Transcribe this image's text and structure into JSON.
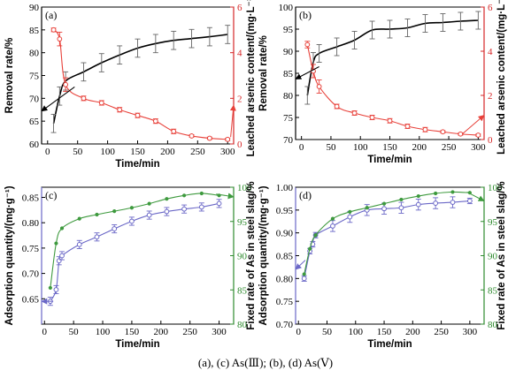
{
  "caption": "(a), (c) As(Ⅲ); (b), (d) As(Ⅴ)",
  "colors": {
    "black": "#000000",
    "red": "#e8413a",
    "blue": "#6b68c7",
    "green": "#3e9a3e",
    "red_axis": "#d62728",
    "green_axis": "#2e8b2e"
  },
  "chart_data": [
    {
      "id": "a",
      "type": "line",
      "panel_label": "(a)",
      "xlabel": "Time/min",
      "ylabel": "Removal rate/%",
      "y2label": "Leached arsenic content/(mg·L⁻¹)",
      "xlim": [
        -10,
        310
      ],
      "ylim": [
        60,
        90
      ],
      "y2lim": [
        0,
        6
      ],
      "xticks": [
        0,
        50,
        100,
        150,
        200,
        250,
        300
      ],
      "yticks": [
        60,
        65,
        70,
        75,
        80,
        85,
        90
      ],
      "y2ticks": [
        0,
        2,
        4,
        6
      ],
      "series": [
        {
          "axis": "left",
          "color": "black",
          "marker": "none",
          "x": [
            10,
            20,
            30,
            60,
            90,
            120,
            150,
            180,
            210,
            240,
            270,
            300
          ],
          "y": [
            64.5,
            70.5,
            73.8,
            75.8,
            77.8,
            79.5,
            81.0,
            82.0,
            82.7,
            83.1,
            83.5,
            84.0
          ],
          "err": [
            2.0,
            2.0,
            2.0,
            2.0,
            2.0,
            2.0,
            2.0,
            2.0,
            2.0,
            2.0,
            2.0,
            2.0
          ]
        },
        {
          "axis": "right",
          "color": "red",
          "marker": "circle",
          "x": [
            10,
            20,
            30,
            60,
            90,
            120,
            150,
            180,
            210,
            240,
            270,
            300
          ],
          "y": [
            5.0,
            4.6,
            2.6,
            2.0,
            1.8,
            1.5,
            1.25,
            1.0,
            0.55,
            0.35,
            0.25,
            0.2
          ],
          "err": [
            0.08,
            0.3,
            0.3,
            0.1,
            0.1,
            0.1,
            0.1,
            0.1,
            0.1,
            0.05,
            0.05,
            0.05
          ]
        }
      ],
      "arrows": [
        {
          "from": [
            45,
            72.5
          ],
          "to": [
            -10,
            67.2
          ]
        },
        {
          "from": [
            305,
            0.3
          ],
          "to": [
            310,
            1.7
          ]
        }
      ]
    },
    {
      "id": "b",
      "type": "line",
      "panel_label": "(b)",
      "xlabel": "Time/min",
      "ylabel": "Removal rate/%",
      "y2label": "Leached arsenic content/(mg·L⁻¹)",
      "xlim": [
        -10,
        310
      ],
      "ylim": [
        70,
        100
      ],
      "y2lim": [
        0,
        6
      ],
      "xticks": [
        0,
        50,
        100,
        150,
        200,
        250,
        300
      ],
      "yticks": [
        70,
        75,
        80,
        85,
        90,
        95,
        100
      ],
      "y2ticks": [
        0,
        2,
        4,
        6
      ],
      "series": [
        {
          "axis": "left",
          "color": "black",
          "marker": "none",
          "x": [
            10,
            20,
            30,
            60,
            90,
            120,
            150,
            180,
            210,
            240,
            270,
            300
          ],
          "y": [
            80.0,
            87.5,
            89.5,
            91.0,
            92.5,
            94.8,
            95.0,
            95.3,
            96.3,
            96.5,
            96.8,
            97.0
          ],
          "err": [
            2.0,
            2.2,
            2.0,
            2.0,
            2.0,
            2.0,
            2.0,
            2.0,
            2.0,
            2.0,
            2.0,
            2.0
          ]
        },
        {
          "axis": "right",
          "color": "red",
          "marker": "circle",
          "x": [
            10,
            20,
            30,
            60,
            90,
            120,
            150,
            180,
            210,
            240,
            270,
            300
          ],
          "y": [
            4.3,
            3.1,
            2.4,
            1.5,
            1.2,
            1.0,
            0.85,
            0.6,
            0.45,
            0.35,
            0.25,
            0.2
          ],
          "err": [
            0.15,
            0.3,
            0.3,
            0.1,
            0.1,
            0.1,
            0.1,
            0.1,
            0.1,
            0.05,
            0.05,
            0.05
          ]
        }
      ],
      "arrows": [
        {
          "from": [
            30,
            86.5
          ],
          "to": [
            -10,
            83.7
          ]
        },
        {
          "from": [
            273,
            0.25
          ],
          "to": [
            310,
            1.1
          ]
        }
      ]
    },
    {
      "id": "c",
      "type": "line",
      "panel_label": "(c)",
      "xlabel": "Time/min",
      "ylabel": "Adsorption quantity/(mg·g⁻¹)",
      "y2label": "Fixed rate of As in steel slag/%",
      "xlim": [
        -5,
        325
      ],
      "ylim": [
        0.6,
        0.87
      ],
      "y2lim": [
        80,
        100
      ],
      "xticks": [
        0,
        50,
        100,
        150,
        200,
        250,
        300
      ],
      "yticks": [
        0.65,
        0.7,
        0.75,
        0.8,
        0.85
      ],
      "y2ticks": [
        80,
        85,
        90,
        95,
        100
      ],
      "series": [
        {
          "axis": "left",
          "color": "blue",
          "marker": "circle-open",
          "x": [
            10,
            20,
            25,
            30,
            60,
            90,
            120,
            150,
            180,
            210,
            240,
            270,
            300
          ],
          "y": [
            0.645,
            0.668,
            0.725,
            0.735,
            0.757,
            0.772,
            0.788,
            0.803,
            0.815,
            0.822,
            0.827,
            0.831,
            0.838
          ],
          "err": [
            0.008,
            0.008,
            0.008,
            0.008,
            0.008,
            0.008,
            0.008,
            0.008,
            0.008,
            0.008,
            0.008,
            0.008,
            0.008
          ]
        },
        {
          "axis": "right",
          "color": "green",
          "marker": "small",
          "x": [
            10,
            20,
            30,
            60,
            90,
            120,
            150,
            180,
            210,
            240,
            270,
            300
          ],
          "y": [
            85.3,
            91.8,
            94.0,
            95.4,
            96.0,
            96.5,
            97.0,
            97.6,
            98.3,
            98.8,
            99.1,
            98.8
          ],
          "err": [
            0,
            0,
            0,
            0,
            0,
            0,
            0,
            0,
            0,
            0,
            0,
            0
          ]
        }
      ],
      "arrows": [
        {
          "from": [
            15,
            0.645
          ],
          "to": [
            -5,
            0.645
          ]
        },
        {
          "from": [
            295,
            99.0
          ],
          "to": [
            325,
            98.6
          ]
        }
      ]
    },
    {
      "id": "d",
      "type": "line",
      "panel_label": "(d)",
      "xlabel": "Time/min",
      "ylabel": "Adsorption quantity/(mg·g⁻¹)",
      "y2label": "Fixed rate of As in steel slag/%",
      "xlim": [
        -5,
        325
      ],
      "ylim": [
        0.7,
        1.0
      ],
      "y2lim": [
        80,
        100
      ],
      "xticks": [
        0,
        50,
        100,
        150,
        200,
        250,
        300
      ],
      "yticks": [
        0.7,
        0.75,
        0.8,
        0.85,
        0.9,
        0.95,
        1.0
      ],
      "y2ticks": [
        80,
        85,
        90,
        95,
        100
      ],
      "series": [
        {
          "axis": "left",
          "color": "blue",
          "marker": "circle-open",
          "x": [
            10,
            20,
            25,
            30,
            60,
            90,
            120,
            150,
            180,
            210,
            240,
            270,
            300
          ],
          "y": [
            0.8,
            0.86,
            0.875,
            0.895,
            0.915,
            0.935,
            0.95,
            0.953,
            0.955,
            0.962,
            0.965,
            0.967,
            0.97
          ],
          "err": [
            0.006,
            0.006,
            0.006,
            0.006,
            0.012,
            0.012,
            0.012,
            0.012,
            0.012,
            0.012,
            0.012,
            0.012,
            0.006
          ]
        },
        {
          "axis": "right",
          "color": "green",
          "marker": "small",
          "x": [
            10,
            20,
            30,
            60,
            90,
            120,
            150,
            180,
            210,
            240,
            270,
            300
          ],
          "y": [
            87.3,
            91.0,
            93.0,
            95.4,
            96.4,
            97.0,
            97.6,
            98.2,
            98.7,
            99.1,
            99.3,
            99.2
          ],
          "err": [
            0,
            0,
            0,
            0,
            0,
            0,
            0,
            0,
            0,
            0,
            0,
            0
          ]
        }
      ],
      "arrows": [
        {
          "from": [
            12,
            0.84
          ],
          "to": [
            -5,
            0.82
          ]
        },
        {
          "from": [
            295,
            99.3
          ],
          "to": [
            325,
            98.0
          ]
        }
      ]
    }
  ]
}
